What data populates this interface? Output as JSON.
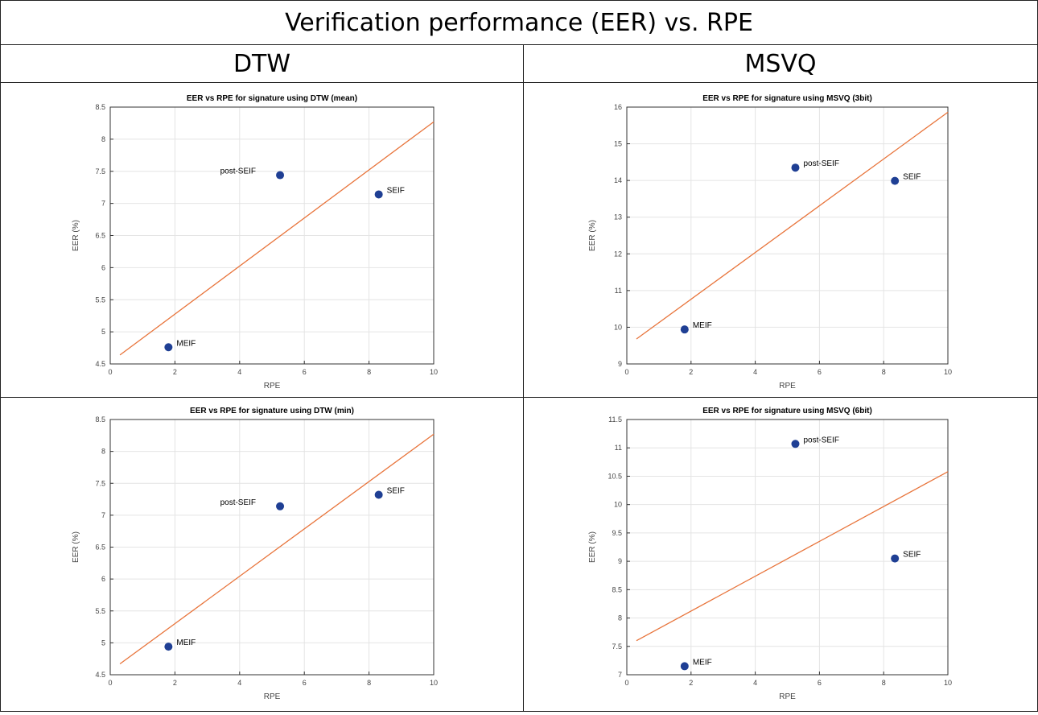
{
  "page": {
    "title": "Verification performance (EER) vs. RPE",
    "columns": [
      "DTW",
      "MSVQ"
    ]
  },
  "colors": {
    "point": "#1f3f94",
    "fit_line": "#e8743b",
    "grid": "#e4e4e4",
    "axis": "#333333"
  },
  "chart_data": [
    {
      "type": "scatter",
      "title": "EER vs RPE for signature using DTW (mean)",
      "xlabel": "RPE",
      "ylabel": "EER (%)",
      "xlim": [
        0,
        10
      ],
      "ylim": [
        4.5,
        8.5
      ],
      "xticks": [
        0,
        2,
        4,
        6,
        8,
        10
      ],
      "yticks": [
        4.5,
        5,
        5.5,
        6,
        6.5,
        7,
        7.5,
        8,
        8.5
      ],
      "ytick_labels": [
        "4.5",
        "5",
        "5.5",
        "6",
        "6.5",
        "7",
        "7.5",
        "8",
        "8.5"
      ],
      "grid": true,
      "points": [
        {
          "label": "MEIF",
          "x": 1.8,
          "y": 4.76,
          "label_side": "right"
        },
        {
          "label": "post-SEIF",
          "x": 5.25,
          "y": 7.44,
          "label_side": "left"
        },
        {
          "label": "SEIF",
          "x": 8.3,
          "y": 7.14,
          "label_side": "right"
        }
      ],
      "fit_line": {
        "x": [
          0.3,
          10
        ],
        "y": [
          4.64,
          8.27
        ]
      }
    },
    {
      "type": "scatter",
      "title": "EER vs RPE for signature using MSVQ (3bit)",
      "xlabel": "RPE",
      "ylabel": "EER (%)",
      "xlim": [
        0,
        10
      ],
      "ylim": [
        9,
        16
      ],
      "xticks": [
        0,
        2,
        4,
        6,
        8,
        10
      ],
      "yticks": [
        9,
        10,
        11,
        12,
        13,
        14,
        15,
        16
      ],
      "ytick_labels": [
        "9",
        "10",
        "11",
        "12",
        "13",
        "14",
        "15",
        "16"
      ],
      "grid": true,
      "points": [
        {
          "label": "MEIF",
          "x": 1.8,
          "y": 9.94,
          "label_side": "right"
        },
        {
          "label": "post-SEIF",
          "x": 5.25,
          "y": 14.35,
          "label_side": "right"
        },
        {
          "label": "SEIF",
          "x": 8.35,
          "y": 13.99,
          "label_side": "right"
        }
      ],
      "fit_line": {
        "x": [
          0.3,
          10
        ],
        "y": [
          9.68,
          15.86
        ]
      }
    },
    {
      "type": "scatter",
      "title": "EER vs RPE for signature using DTW (min)",
      "xlabel": "RPE",
      "ylabel": "EER (%)",
      "xlim": [
        0,
        10
      ],
      "ylim": [
        4.5,
        8.5
      ],
      "xticks": [
        0,
        2,
        4,
        6,
        8,
        10
      ],
      "yticks": [
        4.5,
        5,
        5.5,
        6,
        6.5,
        7,
        7.5,
        8,
        8.5
      ],
      "ytick_labels": [
        "4.5",
        "5",
        "5.5",
        "6",
        "6.5",
        "7",
        "7.5",
        "8",
        "8.5"
      ],
      "grid": true,
      "points": [
        {
          "label": "MEIF",
          "x": 1.8,
          "y": 4.94,
          "label_side": "right"
        },
        {
          "label": "post-SEIF",
          "x": 5.25,
          "y": 7.14,
          "label_side": "left"
        },
        {
          "label": "SEIF",
          "x": 8.3,
          "y": 7.32,
          "label_side": "right"
        }
      ],
      "fit_line": {
        "x": [
          0.3,
          10
        ],
        "y": [
          4.67,
          8.27
        ]
      }
    },
    {
      "type": "scatter",
      "title": "EER vs RPE for signature using MSVQ (6bit)",
      "xlabel": "RPE",
      "ylabel": "EER (%)",
      "xlim": [
        0,
        10
      ],
      "ylim": [
        7,
        11.5
      ],
      "xticks": [
        0,
        2,
        4,
        6,
        8,
        10
      ],
      "yticks": [
        7,
        7.5,
        8,
        8.5,
        9,
        9.5,
        10,
        10.5,
        11,
        11.5
      ],
      "ytick_labels": [
        "7",
        "7.5",
        "8",
        "8.5",
        "9",
        "9.5",
        "10",
        "10.5",
        "11",
        "11.5"
      ],
      "grid": true,
      "points": [
        {
          "label": "MEIF",
          "x": 1.8,
          "y": 7.15,
          "label_side": "right"
        },
        {
          "label": "post-SEIF",
          "x": 5.25,
          "y": 11.07,
          "label_side": "right"
        },
        {
          "label": "SEIF",
          "x": 8.35,
          "y": 9.05,
          "label_side": "right"
        }
      ],
      "fit_line": {
        "x": [
          0.3,
          10
        ],
        "y": [
          7.6,
          10.58
        ]
      }
    }
  ]
}
